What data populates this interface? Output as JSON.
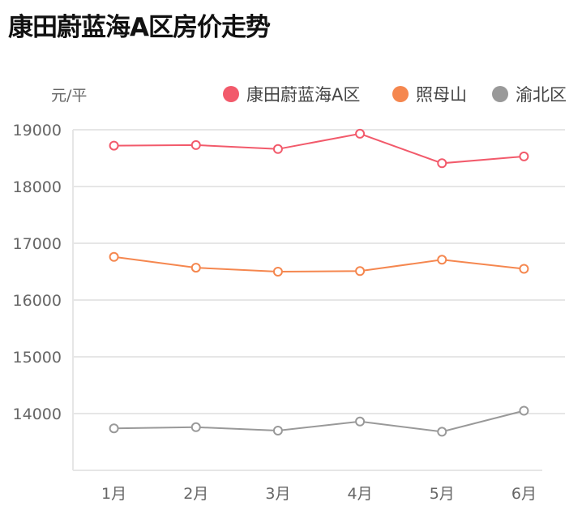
{
  "chart_data": {
    "type": "line",
    "title": "康田蔚蓝海A区房价走势",
    "ylabel": "元/平",
    "xlabel": "",
    "categories": [
      "1月",
      "2月",
      "3月",
      "4月",
      "5月",
      "6月"
    ],
    "ylim": [
      13000,
      19000
    ],
    "yticks": [
      "14000",
      "15000",
      "16000",
      "17000",
      "18000",
      "19000"
    ],
    "grid": true,
    "legend": "top-right",
    "series": [
      {
        "name": "康田蔚蓝海A区",
        "color": "#f25a6b",
        "values": [
          18720,
          18730,
          18660,
          18930,
          18410,
          18530
        ]
      },
      {
        "name": "照母山",
        "color": "#f5874f",
        "values": [
          16760,
          16570,
          16500,
          16510,
          16710,
          16550
        ]
      },
      {
        "name": "渝北区",
        "color": "#999999",
        "values": [
          13740,
          13760,
          13700,
          13860,
          13680,
          14050
        ]
      }
    ]
  }
}
